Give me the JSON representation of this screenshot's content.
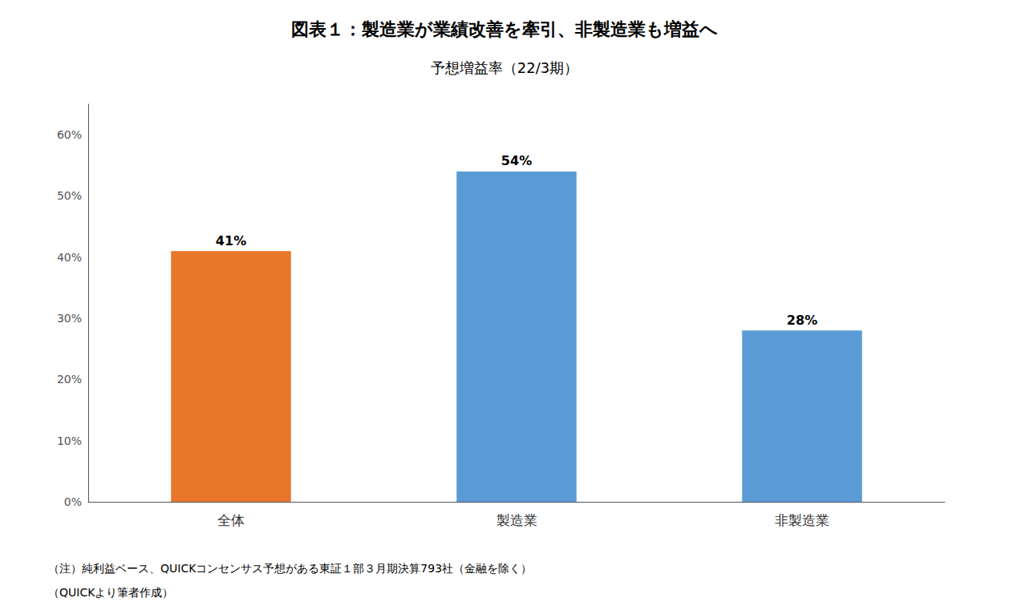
{
  "chart_data": {
    "type": "bar",
    "title": "図表１：製造業が業績改善を牽引、非製造業も増益へ",
    "subtitle": "予想増益率（22/3期）",
    "categories": [
      "全体",
      "製造業",
      "非製造業"
    ],
    "values": [
      41,
      54,
      28
    ],
    "value_labels": [
      "41%",
      "54%",
      "28%"
    ],
    "colors": [
      "#E8762B",
      "#5B9BD5",
      "#5B9BD5"
    ],
    "ylim": [
      0,
      65
    ],
    "yticks": [
      {
        "value": 0,
        "label": "0%"
      },
      {
        "value": 10,
        "label": "10%"
      },
      {
        "value": 20,
        "label": "20%"
      },
      {
        "value": 30,
        "label": "30%"
      },
      {
        "value": 40,
        "label": "40%"
      },
      {
        "value": 50,
        "label": "50%"
      },
      {
        "value": 60,
        "label": "60%"
      }
    ],
    "grid": false,
    "data_labels": true,
    "annotations": [
      "（注）純利益ベース、QUICKコンセンサス予想がある東証１部３月期決算793社（金融を除く）",
      "（QUICKより筆者作成）"
    ]
  }
}
